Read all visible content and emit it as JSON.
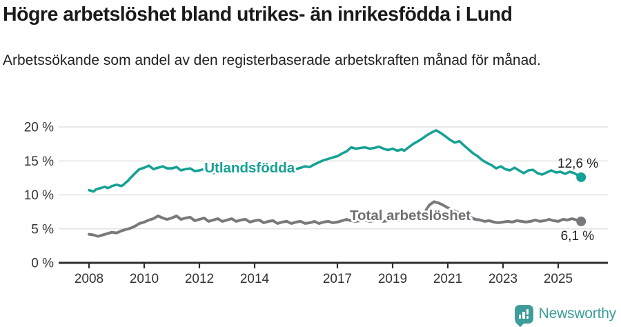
{
  "header": {
    "title": "Högre arbetslöshet bland utrikes- än inrikesfödda i Lund",
    "subtitle": "Arbetssökande som andel av den registerbaserade arbetskraften månad för månad."
  },
  "footer": {
    "brand": "Newsworthy",
    "logo_icon": "bar-chart-speech-bubble-icon"
  },
  "colors": {
    "teal": "#16a195",
    "gray": "#79797d",
    "gray_label": "#6f6f73",
    "title": "#1a1a1a",
    "axis_text": "#333333",
    "grid": "#dbdbdb",
    "axis_line": "#2d2d2d",
    "annotation": "#1e1e1e",
    "logo_teal": "#3e9c9c",
    "background": "#ffffff"
  },
  "chart_data": {
    "type": "line",
    "grid": "horizontal",
    "x_axis": {
      "range": [
        2008,
        2026.8
      ],
      "ticks": [
        2008,
        2010,
        2012,
        2014,
        2017,
        2019,
        2021,
        2023,
        2025
      ]
    },
    "y_axis": {
      "range": [
        0,
        20
      ],
      "unit": "%",
      "tick_values": [
        0,
        5,
        10,
        15,
        20
      ],
      "tick_labels": [
        "0 %",
        "5 %",
        "10 %",
        "15 %",
        "20 %"
      ]
    },
    "series": [
      {
        "name": "Utlandsfödda",
        "color": "#16a195",
        "width": 3.6,
        "end_value": 12.6,
        "end_label": "12,6 %",
        "points": [
          [
            2008.0,
            10.7
          ],
          [
            2008.08,
            10.6
          ],
          [
            2008.17,
            10.5
          ],
          [
            2008.25,
            10.8
          ],
          [
            2008.33,
            10.9
          ],
          [
            2008.42,
            11.0
          ],
          [
            2008.5,
            11.1
          ],
          [
            2008.58,
            11.2
          ],
          [
            2008.67,
            11.0
          ],
          [
            2008.75,
            11.1
          ],
          [
            2008.83,
            11.3
          ],
          [
            2008.92,
            11.4
          ],
          [
            2009.0,
            11.5
          ],
          [
            2009.08,
            11.4
          ],
          [
            2009.17,
            11.3
          ],
          [
            2009.25,
            11.5
          ],
          [
            2009.33,
            11.8
          ],
          [
            2009.42,
            12.1
          ],
          [
            2009.5,
            12.5
          ],
          [
            2009.58,
            12.8
          ],
          [
            2009.67,
            13.2
          ],
          [
            2009.75,
            13.5
          ],
          [
            2009.83,
            13.8
          ],
          [
            2009.92,
            13.9
          ],
          [
            2010.0,
            14.0
          ],
          [
            2010.17,
            14.3
          ],
          [
            2010.33,
            13.8
          ],
          [
            2010.5,
            14.0
          ],
          [
            2010.67,
            14.2
          ],
          [
            2010.83,
            13.9
          ],
          [
            2011.0,
            13.9
          ],
          [
            2011.17,
            14.1
          ],
          [
            2011.33,
            13.6
          ],
          [
            2011.5,
            13.8
          ],
          [
            2011.67,
            13.9
          ],
          [
            2011.83,
            13.5
          ],
          [
            2012.0,
            13.6
          ],
          [
            2012.17,
            13.8
          ],
          [
            2012.33,
            13.3
          ],
          [
            2012.5,
            13.2
          ],
          [
            2012.67,
            13.5
          ],
          [
            2012.83,
            13.3
          ],
          [
            2013.0,
            13.6
          ],
          [
            2013.17,
            13.9
          ],
          [
            2013.33,
            14.0
          ],
          [
            2013.5,
            14.1
          ],
          [
            2013.67,
            13.7
          ],
          [
            2013.83,
            13.5
          ],
          [
            2014.0,
            13.8
          ],
          [
            2014.17,
            14.0
          ],
          [
            2014.33,
            13.6
          ],
          [
            2014.5,
            13.5
          ],
          [
            2014.67,
            13.3
          ],
          [
            2014.83,
            13.2
          ],
          [
            2015.0,
            13.4
          ],
          [
            2015.17,
            13.3
          ],
          [
            2015.33,
            13.6
          ],
          [
            2015.5,
            13.8
          ],
          [
            2015.67,
            14.0
          ],
          [
            2015.83,
            14.2
          ],
          [
            2016.0,
            14.1
          ],
          [
            2016.17,
            14.5
          ],
          [
            2016.33,
            14.8
          ],
          [
            2016.5,
            15.1
          ],
          [
            2016.67,
            15.3
          ],
          [
            2016.83,
            15.5
          ],
          [
            2017.0,
            15.7
          ],
          [
            2017.17,
            16.1
          ],
          [
            2017.33,
            16.4
          ],
          [
            2017.5,
            17.0
          ],
          [
            2017.67,
            16.8
          ],
          [
            2017.83,
            16.9
          ],
          [
            2018.0,
            17.0
          ],
          [
            2018.17,
            16.8
          ],
          [
            2018.33,
            16.9
          ],
          [
            2018.5,
            17.1
          ],
          [
            2018.67,
            16.8
          ],
          [
            2018.83,
            16.6
          ],
          [
            2019.0,
            16.8
          ],
          [
            2019.17,
            16.5
          ],
          [
            2019.33,
            16.7
          ],
          [
            2019.42,
            16.5
          ],
          [
            2019.58,
            17.0
          ],
          [
            2019.75,
            17.5
          ],
          [
            2019.92,
            17.9
          ],
          [
            2020.08,
            18.3
          ],
          [
            2020.25,
            18.8
          ],
          [
            2020.42,
            19.2
          ],
          [
            2020.58,
            19.5
          ],
          [
            2020.75,
            19.1
          ],
          [
            2020.92,
            18.6
          ],
          [
            2021.08,
            18.1
          ],
          [
            2021.25,
            17.7
          ],
          [
            2021.42,
            17.9
          ],
          [
            2021.58,
            17.3
          ],
          [
            2021.75,
            16.7
          ],
          [
            2021.92,
            16.1
          ],
          [
            2022.08,
            15.7
          ],
          [
            2022.25,
            15.1
          ],
          [
            2022.42,
            14.7
          ],
          [
            2022.58,
            14.4
          ],
          [
            2022.75,
            13.9
          ],
          [
            2022.92,
            14.2
          ],
          [
            2023.08,
            13.8
          ],
          [
            2023.25,
            13.6
          ],
          [
            2023.42,
            14.0
          ],
          [
            2023.58,
            13.6
          ],
          [
            2023.75,
            13.2
          ],
          [
            2023.92,
            13.6
          ],
          [
            2024.08,
            13.7
          ],
          [
            2024.25,
            13.2
          ],
          [
            2024.42,
            13.0
          ],
          [
            2024.58,
            13.3
          ],
          [
            2024.75,
            13.6
          ],
          [
            2024.92,
            13.3
          ],
          [
            2025.08,
            13.4
          ],
          [
            2025.25,
            13.1
          ],
          [
            2025.42,
            13.4
          ],
          [
            2025.58,
            13.2
          ],
          [
            2025.7,
            12.9
          ],
          [
            2025.83,
            12.6
          ]
        ]
      },
      {
        "name": "Total arbetslöshet",
        "color": "#79797d",
        "width": 4,
        "end_value": 6.1,
        "end_label": "6,1 %",
        "points": [
          [
            2008.0,
            4.2
          ],
          [
            2008.17,
            4.1
          ],
          [
            2008.33,
            3.9
          ],
          [
            2008.5,
            4.1
          ],
          [
            2008.67,
            4.3
          ],
          [
            2008.83,
            4.5
          ],
          [
            2009.0,
            4.4
          ],
          [
            2009.17,
            4.7
          ],
          [
            2009.33,
            4.9
          ],
          [
            2009.5,
            5.1
          ],
          [
            2009.67,
            5.4
          ],
          [
            2009.83,
            5.8
          ],
          [
            2010.0,
            6.0
          ],
          [
            2010.17,
            6.3
          ],
          [
            2010.33,
            6.5
          ],
          [
            2010.5,
            6.9
          ],
          [
            2010.67,
            6.6
          ],
          [
            2010.83,
            6.4
          ],
          [
            2011.0,
            6.6
          ],
          [
            2011.17,
            6.9
          ],
          [
            2011.33,
            6.4
          ],
          [
            2011.5,
            6.6
          ],
          [
            2011.67,
            6.7
          ],
          [
            2011.83,
            6.2
          ],
          [
            2012.0,
            6.4
          ],
          [
            2012.17,
            6.6
          ],
          [
            2012.33,
            6.1
          ],
          [
            2012.5,
            6.3
          ],
          [
            2012.67,
            6.5
          ],
          [
            2012.83,
            6.1
          ],
          [
            2013.0,
            6.3
          ],
          [
            2013.17,
            6.5
          ],
          [
            2013.33,
            6.1
          ],
          [
            2013.5,
            6.3
          ],
          [
            2013.67,
            6.4
          ],
          [
            2013.83,
            6.0
          ],
          [
            2014.0,
            6.2
          ],
          [
            2014.17,
            6.3
          ],
          [
            2014.33,
            5.9
          ],
          [
            2014.5,
            6.1
          ],
          [
            2014.67,
            6.2
          ],
          [
            2014.83,
            5.8
          ],
          [
            2015.0,
            6.0
          ],
          [
            2015.17,
            6.1
          ],
          [
            2015.33,
            5.8
          ],
          [
            2015.5,
            6.0
          ],
          [
            2015.67,
            6.1
          ],
          [
            2015.83,
            5.8
          ],
          [
            2016.0,
            5.9
          ],
          [
            2016.17,
            6.1
          ],
          [
            2016.33,
            5.8
          ],
          [
            2016.5,
            6.0
          ],
          [
            2016.67,
            6.1
          ],
          [
            2016.83,
            5.9
          ],
          [
            2017.0,
            6.0
          ],
          [
            2017.17,
            6.2
          ],
          [
            2017.33,
            6.4
          ],
          [
            2017.5,
            6.2
          ],
          [
            2017.67,
            6.1
          ],
          [
            2017.83,
            6.2
          ],
          [
            2018.0,
            6.3
          ],
          [
            2018.17,
            6.1
          ],
          [
            2018.33,
            6.2
          ],
          [
            2018.5,
            6.3
          ],
          [
            2018.67,
            6.1
          ],
          [
            2018.83,
            6.2
          ],
          [
            2019.0,
            6.3
          ],
          [
            2019.17,
            6.2
          ],
          [
            2019.33,
            6.3
          ],
          [
            2019.5,
            6.4
          ],
          [
            2019.67,
            6.5
          ],
          [
            2019.83,
            6.6
          ],
          [
            2020.0,
            6.8
          ],
          [
            2020.17,
            7.5
          ],
          [
            2020.33,
            8.5
          ],
          [
            2020.5,
            9.0
          ],
          [
            2020.67,
            8.8
          ],
          [
            2020.83,
            8.5
          ],
          [
            2021.0,
            8.1
          ],
          [
            2021.17,
            7.8
          ],
          [
            2021.33,
            7.5
          ],
          [
            2021.5,
            7.2
          ],
          [
            2021.67,
            7.0
          ],
          [
            2021.83,
            6.7
          ],
          [
            2022.0,
            6.4
          ],
          [
            2022.17,
            6.3
          ],
          [
            2022.33,
            6.1
          ],
          [
            2022.5,
            6.2
          ],
          [
            2022.67,
            6.0
          ],
          [
            2022.83,
            5.9
          ],
          [
            2023.0,
            6.0
          ],
          [
            2023.17,
            6.1
          ],
          [
            2023.33,
            6.0
          ],
          [
            2023.5,
            6.2
          ],
          [
            2023.67,
            6.1
          ],
          [
            2023.83,
            6.0
          ],
          [
            2024.0,
            6.1
          ],
          [
            2024.17,
            6.3
          ],
          [
            2024.33,
            6.1
          ],
          [
            2024.5,
            6.2
          ],
          [
            2024.67,
            6.4
          ],
          [
            2024.83,
            6.2
          ],
          [
            2025.0,
            6.1
          ],
          [
            2025.17,
            6.4
          ],
          [
            2025.33,
            6.3
          ],
          [
            2025.5,
            6.5
          ],
          [
            2025.67,
            6.3
          ],
          [
            2025.83,
            6.1
          ]
        ]
      }
    ],
    "series_labels": [
      {
        "text": "Utlandsfödda",
        "t": 2012.18,
        "v": 14.0,
        "color": "#16a195"
      },
      {
        "text": "Total arbetslöshet",
        "t": 2017.45,
        "v": 7.0,
        "color": "#6f6f73"
      }
    ]
  }
}
